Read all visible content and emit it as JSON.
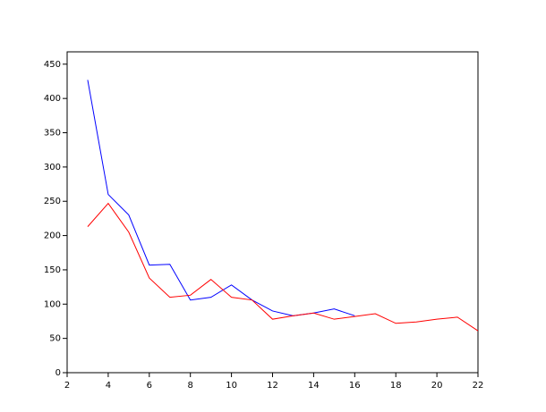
{
  "chart_data": {
    "type": "line",
    "x": [
      3,
      4,
      5,
      6,
      7,
      8,
      9,
      10,
      11,
      12,
      13,
      14,
      15,
      16,
      17,
      18,
      19,
      20,
      21,
      22
    ],
    "series": [
      {
        "color": "#0000ff",
        "values": [
          427,
          260,
          230,
          157,
          158,
          106,
          110,
          128,
          106,
          90,
          83,
          87,
          93,
          83,
          null,
          null,
          null,
          null,
          null,
          null
        ]
      },
      {
        "color": "#ff0000",
        "values": [
          213,
          247,
          205,
          138,
          110,
          113,
          136,
          110,
          106,
          78,
          83,
          87,
          78,
          82,
          86,
          72,
          74,
          78,
          81,
          61
        ]
      }
    ],
    "xlim": [
      2,
      22
    ],
    "xticks": [
      2,
      4,
      6,
      8,
      10,
      12,
      14,
      16,
      18,
      20,
      22
    ],
    "ylim": [
      0,
      468
    ],
    "yticks": [
      0,
      50,
      100,
      150,
      200,
      250,
      300,
      350,
      400,
      450
    ]
  }
}
